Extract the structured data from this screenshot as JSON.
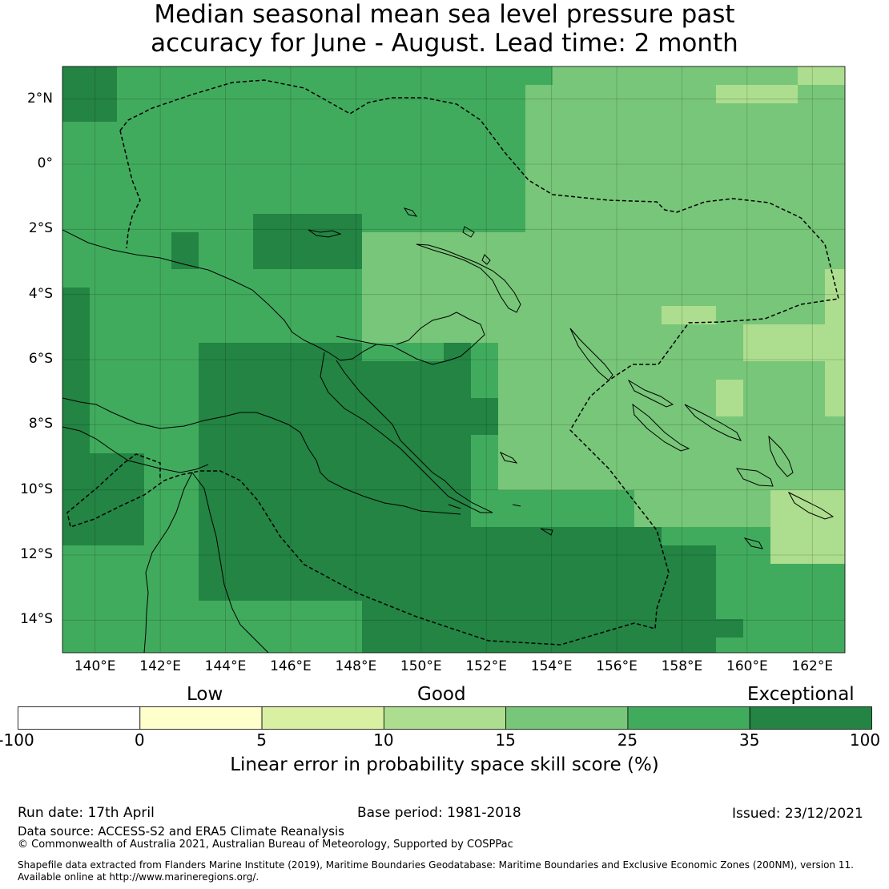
{
  "title": {
    "line1": "Median seasonal mean sea level pressure past",
    "line2": "accuracy for June - August. Lead time: 2 month"
  },
  "map": {
    "lon_labels": [
      "140°E",
      "142°E",
      "144°E",
      "146°E",
      "148°E",
      "150°E",
      "152°E",
      "154°E",
      "156°E",
      "158°E",
      "160°E",
      "162°E"
    ],
    "lat_labels": [
      "2°N",
      "0°",
      "2°S",
      "4°S",
      "6°S",
      "8°S",
      "10°S",
      "12°S",
      "14°S"
    ],
    "lon_range": [
      139.0,
      163.0
    ],
    "lat_range": [
      -15.0,
      3.0
    ],
    "coastline_color": "#000000",
    "eez_boundary_style": "dashed"
  },
  "legend": {
    "categories": [
      "Low",
      "Good",
      "Exceptional"
    ],
    "tick_labels": [
      "-100",
      "0",
      "5",
      "10",
      "15",
      "25",
      "35",
      "100"
    ],
    "bin_colors": [
      "#ffffff",
      "#ffffcc",
      "#d9f0a3",
      "#addd8e",
      "#78c679",
      "#41ab5d",
      "#238443"
    ],
    "title": "Linear error in probability space skill score (%)"
  },
  "footer": {
    "run_date": "Run date: 17th April",
    "base_period": "Base period: 1981-2018",
    "issued": "Issued: 23/12/2021",
    "data_source": "Data source: ACCESS-S2 and ERA5 Climate Reanalysis",
    "copyright": "© Commonwealth of Australia 2021, Australian Bureau of Meteorology, Supported by COSPPac",
    "shapefile_line1": "Shapefile data extracted from Flanders Marine Institute (2019), Maritime Boundaries Geodatabase: Maritime Boundaries and Exclusive Economic Zones (200NM), version 11.",
    "shapefile_line2": "Available online at http://www.marineregions.org/."
  }
}
